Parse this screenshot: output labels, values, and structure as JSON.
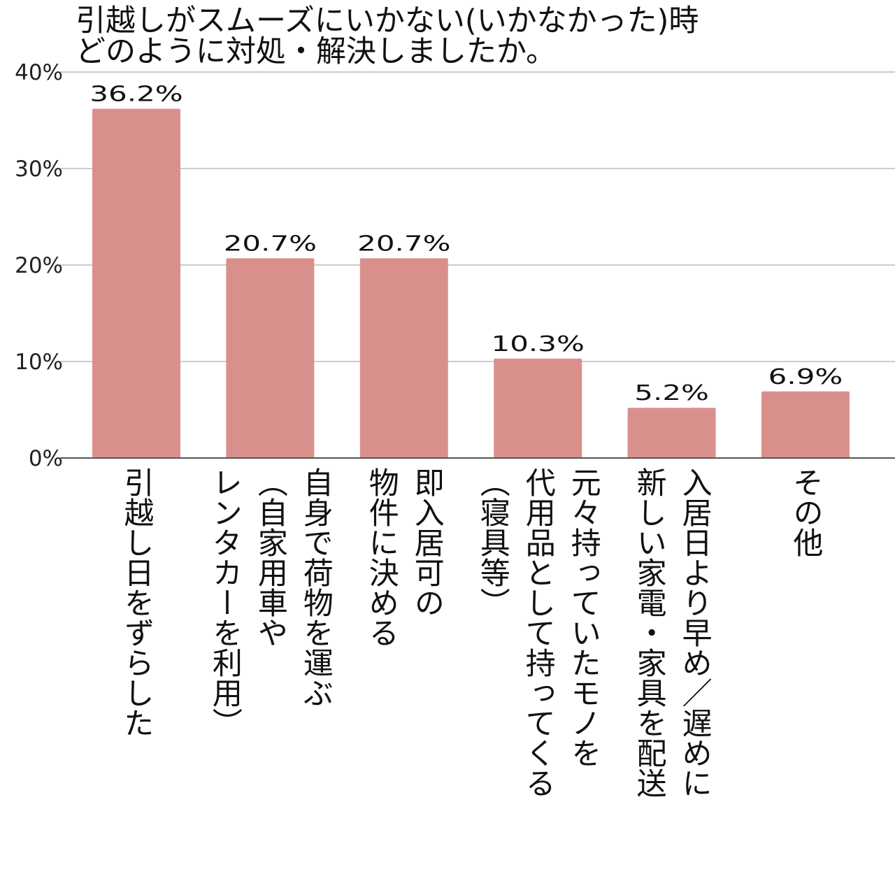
{
  "chart_data": {
    "type": "bar",
    "title": [
      "引越しがスムーズにいかない(いかなかった)時",
      "どのように対処・解決しましたか。"
    ],
    "xlabel": "",
    "ylabel": "",
    "ylim": [
      0,
      40
    ],
    "yticks": [
      "0%",
      "10%",
      "20%",
      "30%",
      "40%"
    ],
    "grid": true,
    "bar_color": "#d9908c",
    "categories": [
      [
        "引越し日をずらした"
      ],
      [
        "自身で荷物を運ぶ",
        "（自家用車や",
        "レンタカーを利用）"
      ],
      [
        "即入居可の",
        "物件に決める"
      ],
      [
        "元々持っていたモノを",
        "代用品として持ってくる",
        "（寝具等）"
      ],
      [
        "入居日より早め／遅めに",
        "新しい家電・家具を配送"
      ],
      [
        "その他"
      ]
    ],
    "values": [
      36.2,
      20.7,
      20.7,
      10.3,
      5.2,
      6.9
    ],
    "value_labels": [
      "36.2%",
      "20.7%",
      "20.7%",
      "10.3%",
      "5.2%",
      "6.9%"
    ]
  }
}
